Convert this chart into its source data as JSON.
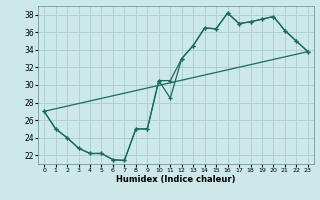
{
  "xlabel": "Humidex (Indice chaleur)",
  "bg_color": "#cce8e8",
  "grid_color": "#aacccc",
  "line_color": "#1a6b5a",
  "xlim": [
    -0.5,
    23.5
  ],
  "ylim": [
    21.0,
    39.0
  ],
  "xticks": [
    0,
    1,
    2,
    3,
    4,
    5,
    6,
    7,
    8,
    9,
    10,
    11,
    12,
    13,
    14,
    15,
    16,
    17,
    18,
    19,
    20,
    21,
    22,
    23
  ],
  "yticks": [
    22,
    24,
    26,
    28,
    30,
    32,
    34,
    36,
    38
  ],
  "line1_x": [
    0,
    1,
    2,
    3,
    4,
    5,
    6,
    7,
    8,
    9,
    10,
    11,
    12,
    13,
    14,
    15,
    16,
    17,
    18,
    19,
    20,
    21,
    22,
    23
  ],
  "line1_y": [
    27.0,
    25.0,
    24.0,
    22.8,
    22.2,
    22.2,
    21.5,
    21.4,
    25.0,
    25.0,
    30.5,
    30.5,
    33.0,
    34.5,
    36.5,
    36.4,
    38.2,
    37.0,
    37.2,
    37.5,
    37.8,
    36.2,
    35.0,
    33.8
  ],
  "line2_x": [
    0,
    1,
    2,
    3,
    4,
    5,
    6,
    7,
    8,
    9,
    10,
    11,
    12,
    13,
    14,
    15,
    16,
    17,
    18,
    19,
    20,
    21,
    22,
    23
  ],
  "line2_y": [
    27.0,
    25.0,
    24.0,
    22.8,
    22.2,
    22.2,
    21.5,
    21.4,
    25.0,
    25.0,
    30.5,
    28.5,
    33.0,
    34.5,
    36.5,
    36.4,
    38.2,
    37.0,
    37.2,
    37.5,
    37.8,
    36.2,
    35.0,
    33.8
  ],
  "line3_x": [
    0,
    23
  ],
  "line3_y": [
    27.0,
    33.8
  ]
}
